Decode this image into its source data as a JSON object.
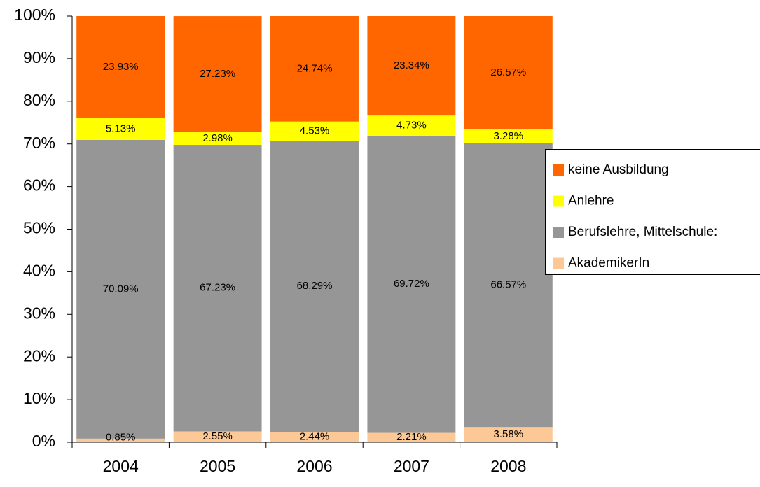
{
  "chart_data": {
    "type": "stacked_bar",
    "categories": [
      "2004",
      "2005",
      "2006",
      "2007",
      "2008"
    ],
    "series": [
      {
        "name": "AkademikerIn",
        "color": "#fbc896",
        "values": [
          0.85,
          2.55,
          2.44,
          2.21,
          3.58
        ],
        "value_labels": [
          "0.85%",
          "2.55%",
          "2.44%",
          "2.21%",
          "3.58%"
        ]
      },
      {
        "name": "Berufslehre, Mittelschule:",
        "color": "#969696",
        "values": [
          70.09,
          67.23,
          68.29,
          69.72,
          66.57
        ],
        "value_labels": [
          "70.09%",
          "67.23%",
          "68.29%",
          "69.72%",
          "66.57%"
        ]
      },
      {
        "name": "Anlehre",
        "color": "#ffff00",
        "values": [
          5.13,
          2.98,
          4.53,
          4.73,
          3.28
        ],
        "value_labels": [
          "5.13%",
          "2.98%",
          "4.53%",
          "4.73%",
          "3.28%"
        ]
      },
      {
        "name": "keine Ausbildung",
        "color": "#ff6600",
        "values": [
          23.93,
          27.23,
          24.74,
          23.34,
          26.57
        ],
        "value_labels": [
          "23.93%",
          "27.23%",
          "24.74%",
          "23.34%",
          "26.57%"
        ]
      }
    ],
    "ylim": [
      0,
      100
    ],
    "yticks": [
      {
        "value": 0,
        "label": "0%"
      },
      {
        "value": 10,
        "label": "10%"
      },
      {
        "value": 20,
        "label": "20%"
      },
      {
        "value": 30,
        "label": "30%"
      },
      {
        "value": 40,
        "label": "40%"
      },
      {
        "value": 50,
        "label": "50%"
      },
      {
        "value": 60,
        "label": "60%"
      },
      {
        "value": 70,
        "label": "70%"
      },
      {
        "value": 80,
        "label": "80%"
      },
      {
        "value": 90,
        "label": "90%"
      },
      {
        "value": 100,
        "label": "100%"
      }
    ],
    "legend": "right"
  }
}
